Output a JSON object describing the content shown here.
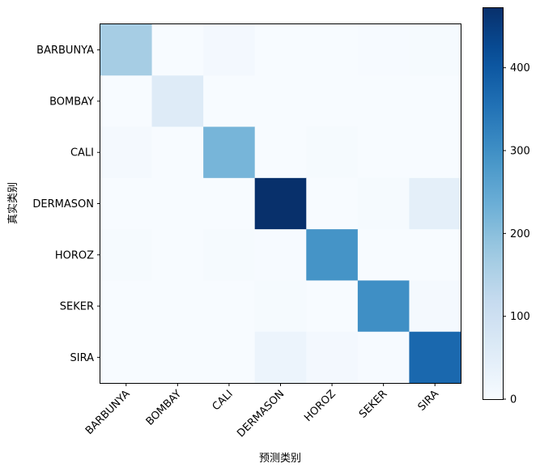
{
  "chart_data": {
    "type": "heatmap",
    "xlabel": "预测类别",
    "ylabel": "真实类别",
    "x_categories": [
      "BARBUNYA",
      "BOMBAY",
      "CALI",
      "DERMASON",
      "HOROZ",
      "SEKER",
      "SIRA"
    ],
    "y_categories": [
      "BARBUNYA",
      "BOMBAY",
      "CALI",
      "DERMASON",
      "HOROZ",
      "SEKER",
      "SIRA"
    ],
    "matrix": [
      [
        165,
        0,
        10,
        0,
        0,
        3,
        4
      ],
      [
        0,
        60,
        0,
        0,
        0,
        0,
        0
      ],
      [
        8,
        0,
        222,
        0,
        5,
        0,
        0
      ],
      [
        0,
        0,
        0,
        472,
        0,
        5,
        45
      ],
      [
        5,
        0,
        5,
        2,
        290,
        0,
        0
      ],
      [
        0,
        0,
        0,
        5,
        0,
        300,
        6
      ],
      [
        0,
        0,
        0,
        25,
        10,
        3,
        370
      ]
    ],
    "colormap": "Blues",
    "colorbar": {
      "min": 0,
      "max": 472,
      "ticks": [
        0,
        100,
        200,
        300,
        400
      ]
    },
    "grid": false
  }
}
